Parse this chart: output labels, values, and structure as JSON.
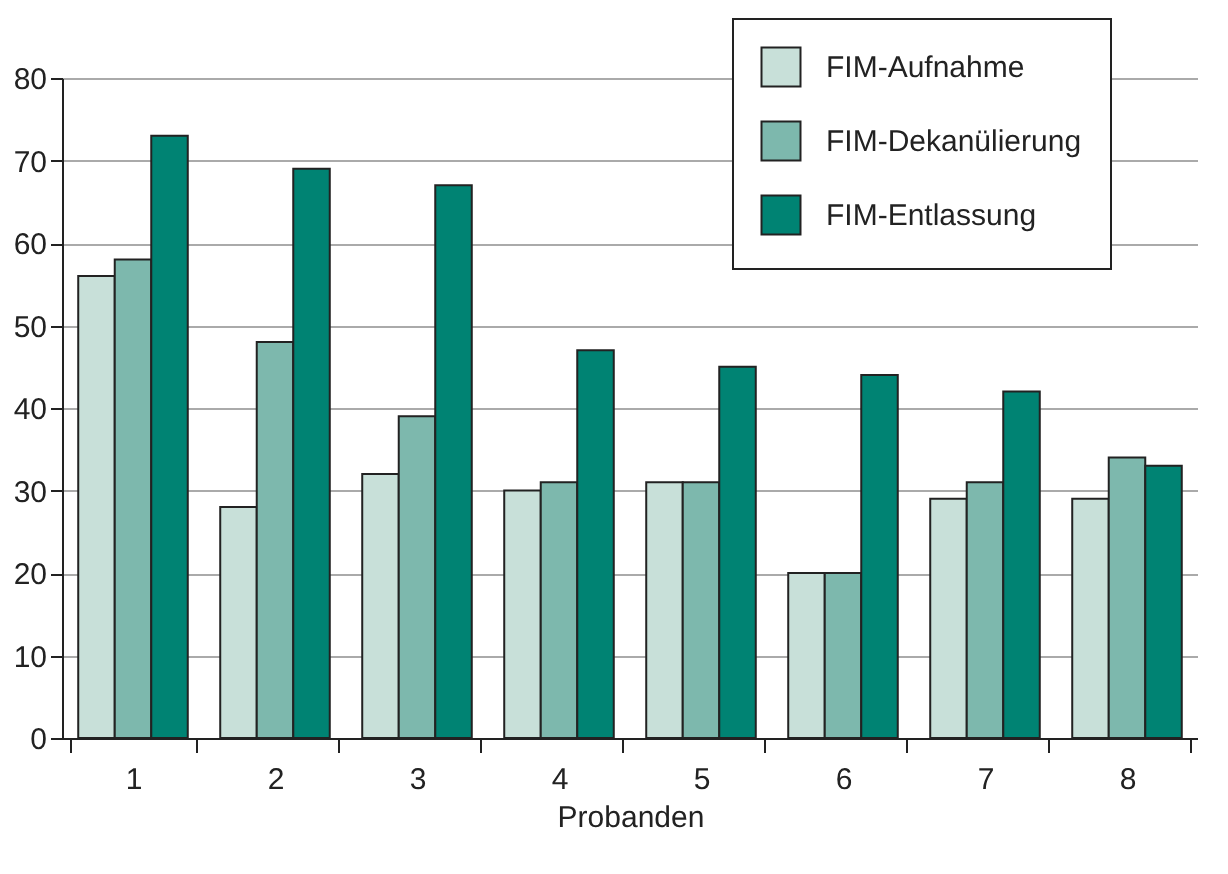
{
  "chart_data": {
    "type": "bar",
    "xlabel": "Probanden",
    "categories": [
      "1",
      "2",
      "3",
      "4",
      "5",
      "6",
      "7",
      "8"
    ],
    "series": [
      {
        "name": "FIM-Aufnahme",
        "color": "#c8e0d9",
        "values": [
          56,
          28,
          32,
          30,
          31,
          20,
          29,
          29
        ]
      },
      {
        "name": "FIM-Dekanülierung",
        "color": "#7db8ad",
        "values": [
          58,
          48,
          39,
          31,
          31,
          20,
          31,
          34
        ]
      },
      {
        "name": "FIM-Entlassung",
        "color": "#008373",
        "values": [
          73,
          69,
          67,
          47,
          45,
          44,
          42,
          33
        ]
      }
    ],
    "ylim": [
      0,
      80
    ],
    "yticks": [
      0,
      10,
      20,
      30,
      40,
      50,
      60,
      70,
      80
    ],
    "grid": "y",
    "legend": "top right"
  }
}
